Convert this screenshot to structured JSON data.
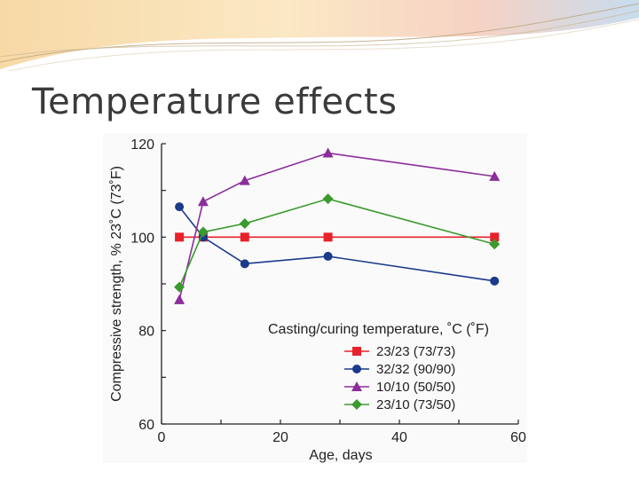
{
  "slide": {
    "title": "Temperature effects"
  },
  "chart_data": {
    "type": "line",
    "xlabel": "Age, days",
    "ylabel": "Compressive strength, % 23˚C (73˚F)",
    "xlim": [
      0,
      60
    ],
    "ylim": [
      60,
      120
    ],
    "x_ticks": [
      0,
      20,
      40,
      60
    ],
    "y_ticks": [
      60,
      80,
      100,
      120
    ],
    "legend_title": "Casting/curing temperature, ˚C (˚F)",
    "legend_placement": "bottom-right",
    "grid": false,
    "series": [
      {
        "name": "23/23 (73/73)",
        "color": "#e8212b",
        "marker": "square",
        "points": [
          [
            3,
            100
          ],
          [
            7,
            100
          ],
          [
            14,
            100
          ],
          [
            28,
            100
          ],
          [
            56,
            100
          ]
        ]
      },
      {
        "name": "32/32 (90/90)",
        "color": "#1b3a8a",
        "marker": "circle",
        "points": [
          [
            3,
            106.5
          ],
          [
            7,
            100
          ],
          [
            14,
            94.3
          ],
          [
            28,
            95.9
          ],
          [
            56,
            90.6
          ]
        ]
      },
      {
        "name": "10/10 (50/50)",
        "color": "#8b2d9a",
        "marker": "triangle",
        "points": [
          [
            3,
            86.6
          ],
          [
            7,
            107.6
          ],
          [
            14,
            112.1
          ],
          [
            28,
            118.0
          ],
          [
            56,
            113.0
          ]
        ]
      },
      {
        "name": "23/10 (73/50)",
        "color": "#3b9a2e",
        "marker": "diamond",
        "points": [
          [
            3,
            89.3
          ],
          [
            7,
            101.1
          ],
          [
            14,
            102.9
          ],
          [
            28,
            108.2
          ],
          [
            56,
            98.5
          ]
        ]
      }
    ]
  }
}
